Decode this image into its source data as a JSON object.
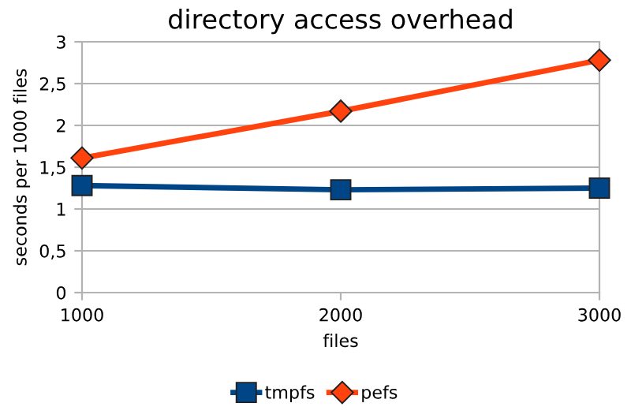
{
  "chart_data": {
    "type": "line",
    "title": "directory access overhead",
    "xlabel": "files",
    "ylabel": "seconds per 1000 files",
    "x": [
      1000,
      2000,
      3000
    ],
    "series": [
      {
        "name": "tmpfs",
        "color": "#004586",
        "marker": "square",
        "values": [
          1.28,
          1.23,
          1.25
        ]
      },
      {
        "name": "pefs",
        "color": "#ff420e",
        "marker": "diamond",
        "values": [
          1.61,
          2.17,
          2.78
        ]
      }
    ],
    "xlim": [
      1000,
      3000
    ],
    "xticks": [
      1000,
      2000,
      3000
    ],
    "ylim": [
      0,
      3
    ],
    "yticks": [
      0,
      {
        "value": 0.5,
        "label": "0,5"
      },
      1,
      {
        "value": 1.5,
        "label": "1,5"
      },
      2,
      {
        "value": 2.5,
        "label": "2,5"
      },
      3
    ],
    "grid": "y",
    "legend": "bottom",
    "line_style": "solid"
  }
}
